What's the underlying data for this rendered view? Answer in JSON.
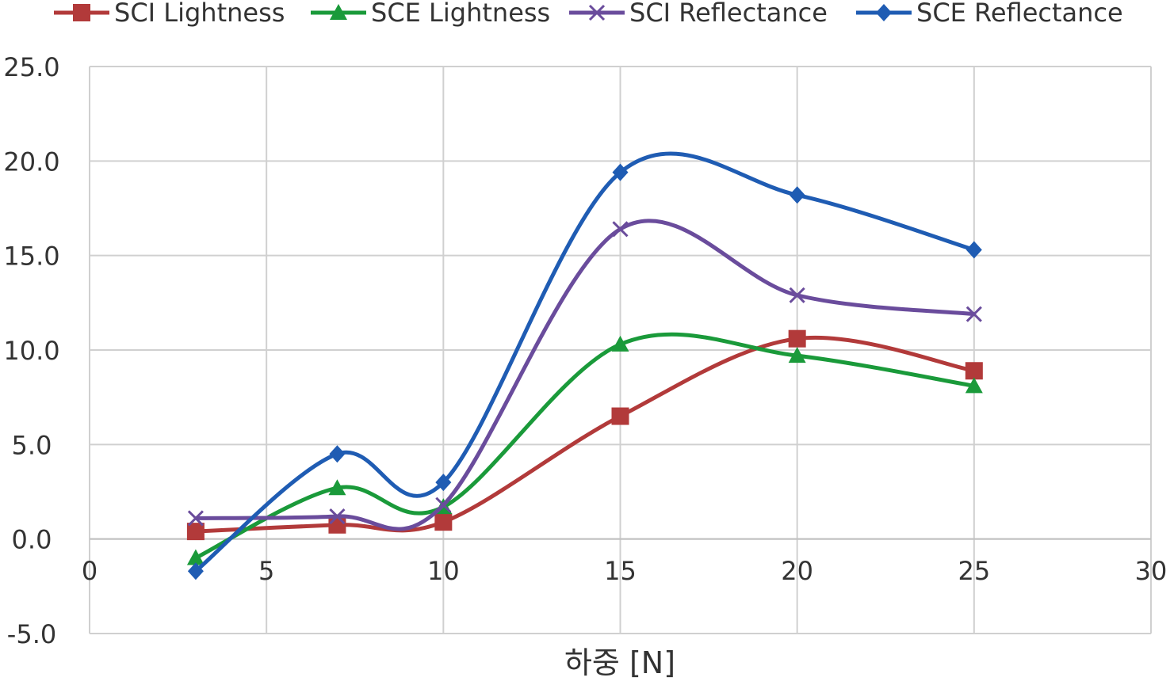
{
  "chart_data": {
    "type": "line",
    "title": "",
    "xlabel": "하중 [N]",
    "ylabel": "",
    "xlim": [
      0,
      30
    ],
    "ylim": [
      -5,
      25
    ],
    "xticks": [
      "0",
      "5",
      "10",
      "15",
      "20",
      "25",
      "30"
    ],
    "yticks": [
      "-5.0",
      "0.0",
      "5.0",
      "10.0",
      "15.0",
      "20.0",
      "25.0"
    ],
    "grid": true,
    "legend_position": "top",
    "smooth": true,
    "x": [
      3,
      7,
      10,
      15,
      20,
      25
    ],
    "series": [
      {
        "name": "SCI Lightness",
        "color": "#b23a3a",
        "marker": "square",
        "values": [
          0.4,
          0.75,
          0.9,
          6.5,
          10.6,
          8.9
        ]
      },
      {
        "name": "SCE Lightness",
        "color": "#1a9a3a",
        "marker": "triangle",
        "values": [
          -1.0,
          2.7,
          1.7,
          10.3,
          9.7,
          8.1
        ]
      },
      {
        "name": "SCI Reflectance",
        "color": "#6a4c9c",
        "marker": "x",
        "values": [
          1.1,
          1.2,
          1.8,
          16.4,
          12.9,
          11.9
        ]
      },
      {
        "name": "SCE Reflectance",
        "color": "#1f5cb3",
        "marker": "diamond",
        "values": [
          -1.7,
          4.5,
          3.0,
          19.4,
          18.2,
          15.3
        ]
      }
    ]
  }
}
